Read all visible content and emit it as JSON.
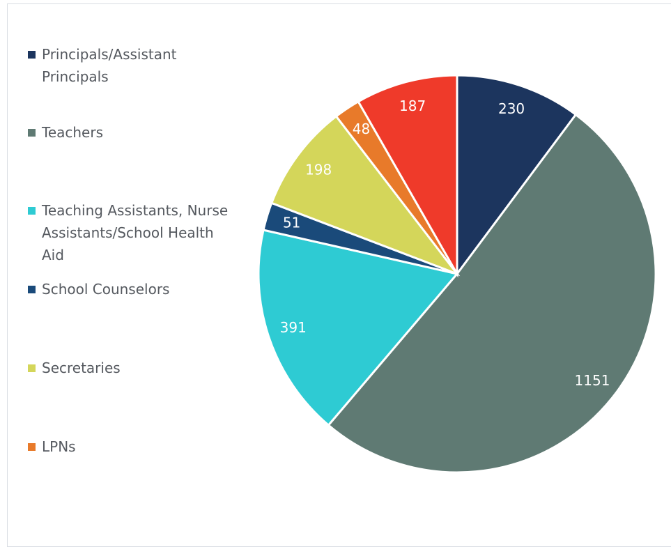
{
  "chart_data": {
    "type": "pie",
    "categories": [
      "Principals/Assistant Principals",
      "Teachers",
      "Teaching Assistants, Nurse Assistants/School Health Aid",
      "School Counselors",
      "Secretaries",
      "LPNs",
      null
    ],
    "values": [
      230,
      1151,
      391,
      51,
      198,
      48,
      187
    ],
    "colors": [
      "#1c355e",
      "#5f7a73",
      "#2ecbd3",
      "#1a4a7a",
      "#d4d65a",
      "#e87a2a",
      "#ef3a2a"
    ],
    "legend": "left"
  }
}
